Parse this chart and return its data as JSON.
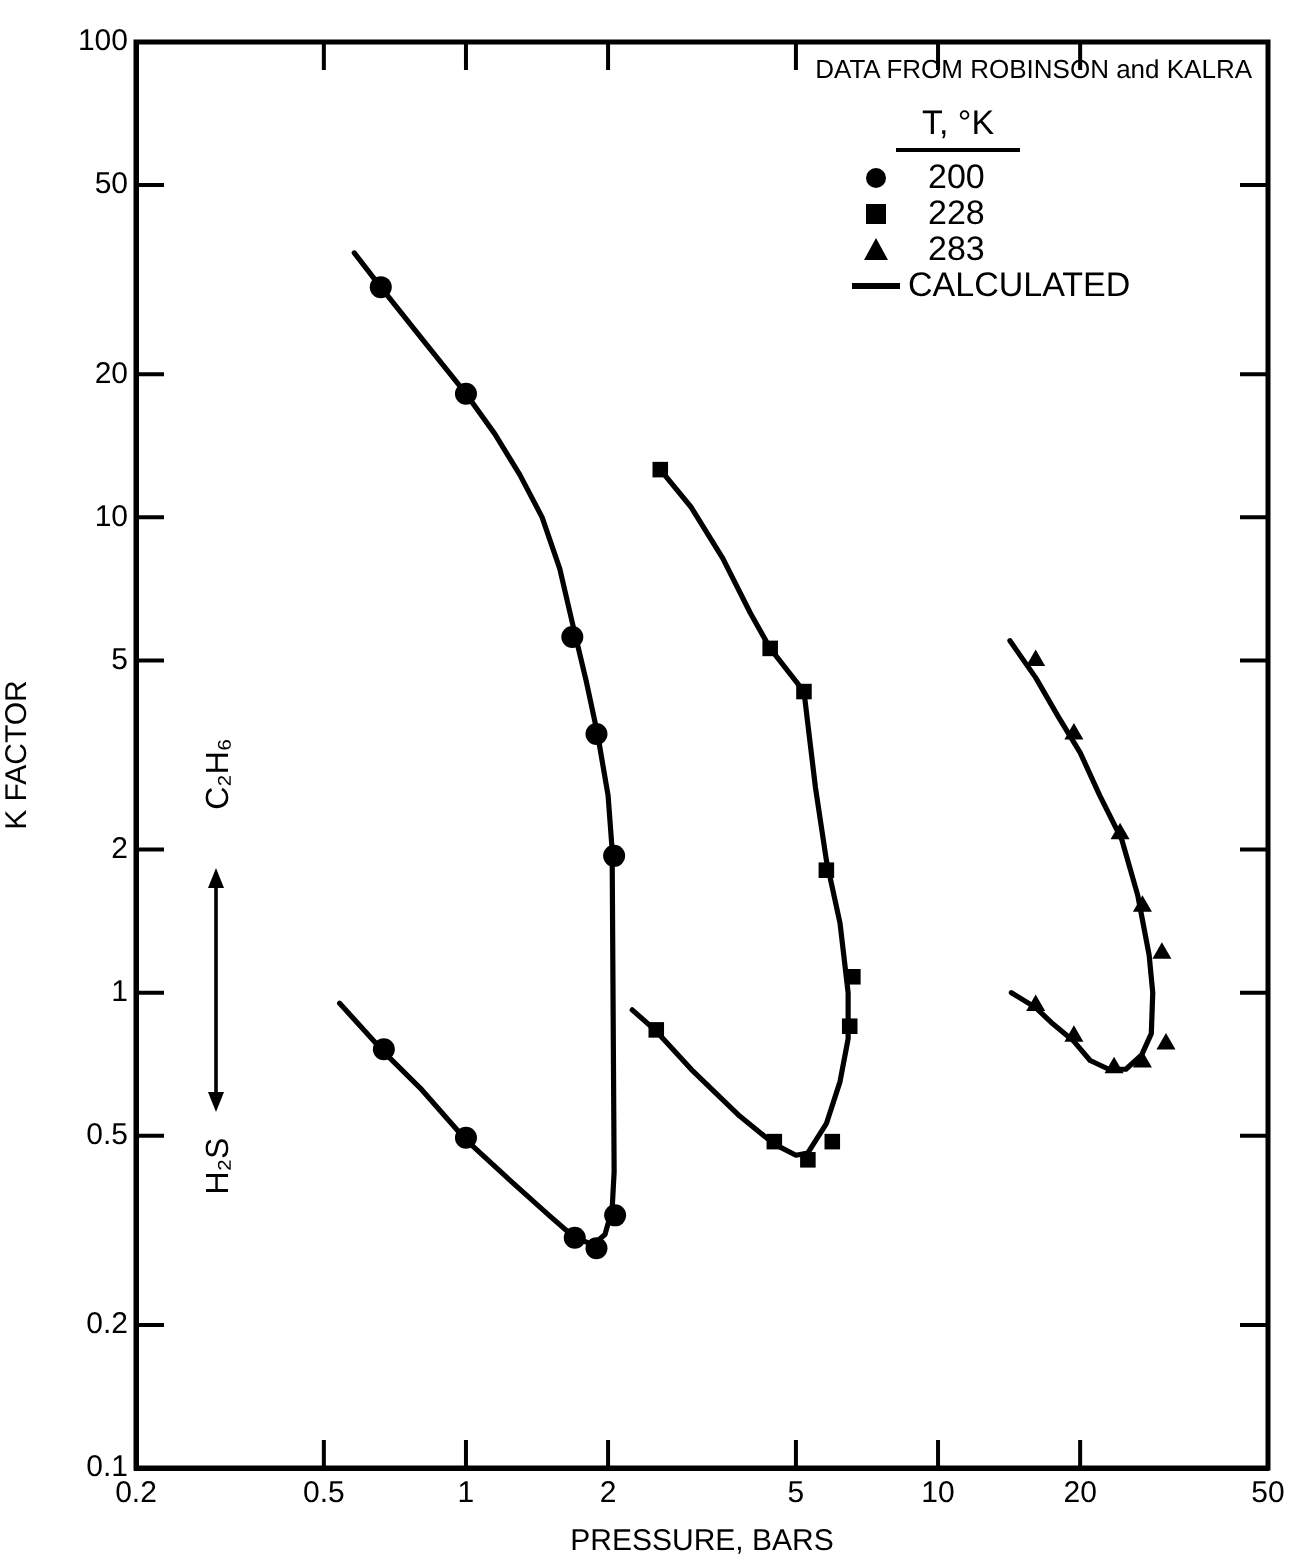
{
  "chart_data": {
    "type": "scatter",
    "xlabel": "PRESSURE, BARS",
    "ylabel": "K FACTOR",
    "legend_title": "T, °K",
    "legend": "top right",
    "log": "xy",
    "grid": false,
    "xlim": [
      0.2,
      50
    ],
    "xticks": [
      0.2,
      0.5,
      1,
      2,
      5,
      10,
      20,
      50
    ],
    "ylim": [
      0.1,
      100
    ],
    "yticks": [
      0.1,
      0.2,
      0.5,
      1,
      2,
      5,
      10,
      20,
      50,
      100
    ],
    "annotations": [
      "DATA FROM ROBINSON and KALRA",
      "C₂H₆",
      "H₂S"
    ],
    "series": [
      {
        "name": "200",
        "marker": "circle",
        "color": "#000000",
        "x": [
          0.66,
          1.0,
          1.68,
          1.89,
          2.06,
          2.07,
          1.89,
          1.7,
          1.0,
          0.67
        ],
        "values": [
          30.5,
          18.2,
          5.6,
          3.5,
          1.94,
          0.34,
          0.29,
          0.305,
          0.495,
          0.76
        ]
      },
      {
        "name": "228",
        "marker": "square",
        "color": "#000000",
        "x": [
          2.58,
          4.41,
          5.2,
          5.8,
          6.6,
          6.5,
          2.53,
          4.5,
          5.3,
          5.97
        ],
        "values": [
          12.6,
          5.3,
          4.3,
          1.81,
          1.08,
          0.85,
          0.835,
          0.486,
          0.445,
          0.486
        ]
      },
      {
        "name": "283",
        "marker": "triangle",
        "color": "#000000",
        "x": [
          16.1,
          19.4,
          24.3,
          27.1,
          29.8,
          30.4,
          27.1,
          23.6,
          19.4,
          16.1
        ],
        "values": [
          5.0,
          3.5,
          2.16,
          1.52,
          1.21,
          0.78,
          0.715,
          0.695,
          0.81,
          0.94
        ]
      },
      {
        "name": "CALCULATED",
        "type": "line",
        "marker": "none",
        "color": "#000000",
        "x": [
          0.58,
          0.66,
          0.8,
          1.0,
          1.15,
          1.3,
          1.45,
          1.58,
          1.68,
          1.8,
          1.9,
          2.0,
          2.04,
          2.06,
          2.04,
          1.97,
          1.86,
          1.7,
          1.5,
          1.25,
          1.0,
          0.8,
          0.67,
          0.54
        ],
        "values": [
          36,
          30.5,
          24,
          18.2,
          15,
          12.3,
          10,
          7.8,
          6,
          4.5,
          3.5,
          2.6,
          2.0,
          0.42,
          0.35,
          0.31,
          0.295,
          0.305,
          0.34,
          0.4,
          0.49,
          0.63,
          0.75,
          0.95
        ]
      },
      {
        "type": "line",
        "marker": "none",
        "color": "#000000",
        "x": [
          2.58,
          3.0,
          3.5,
          4.0,
          4.41,
          5.2,
          5.5,
          5.8,
          6.2,
          6.45,
          6.45,
          6.2,
          5.8,
          5.3,
          5.0,
          4.5,
          3.8,
          3.0,
          2.53,
          2.25
        ],
        "values": [
          12.6,
          10.5,
          8.2,
          6.3,
          5.3,
          4.3,
          2.7,
          1.9,
          1.4,
          1.0,
          0.8,
          0.65,
          0.53,
          0.46,
          0.455,
          0.48,
          0.55,
          0.69,
          0.83,
          0.92
        ]
      },
      {
        "type": "line",
        "marker": "none",
        "color": "#000000",
        "x": [
          14.2,
          16.1,
          18,
          20,
          22,
          24.5,
          26.5,
          28,
          28.5,
          28.3,
          27,
          25,
          23,
          21,
          19.4,
          17.5,
          16.1,
          14.3
        ],
        "values": [
          5.5,
          4.6,
          3.8,
          3.2,
          2.6,
          2.1,
          1.6,
          1.2,
          1.0,
          0.82,
          0.74,
          0.69,
          0.69,
          0.72,
          0.79,
          0.86,
          0.93,
          1.0
        ]
      }
    ]
  }
}
